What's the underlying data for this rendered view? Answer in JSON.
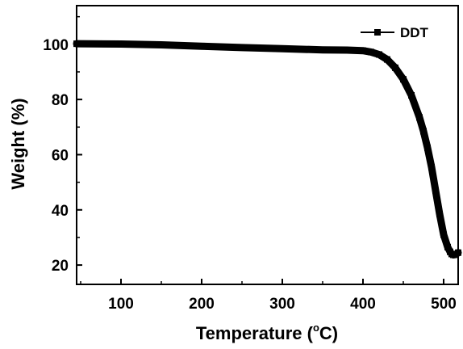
{
  "chart_data": {
    "type": "line",
    "xlabel_main": "Temperature (",
    "xlabel_degree": "o",
    "xlabel_unit": "C)",
    "ylabel": "Weight (%)",
    "xlim": [
      45,
      518
    ],
    "ylim": [
      13,
      114
    ],
    "x_ticks": [
      100,
      200,
      300,
      400,
      500
    ],
    "y_ticks": [
      20,
      40,
      60,
      80,
      100
    ],
    "grid": false,
    "legend_position": "top-right",
    "series": [
      {
        "name": "DDT",
        "color": "#000000",
        "marker": "square",
        "x": [
          45,
          100,
          150,
          200,
          250,
          300,
          350,
          380,
          400,
          410,
          420,
          430,
          440,
          450,
          460,
          470,
          475,
          480,
          485,
          490,
          495,
          500,
          505,
          508,
          510,
          512,
          515,
          518
        ],
        "y": [
          100.2,
          100.1,
          99.8,
          99.3,
          98.8,
          98.4,
          98.0,
          97.9,
          97.7,
          97.2,
          96.3,
          94.5,
          91.5,
          87.3,
          81.5,
          73.5,
          68.5,
          62.5,
          55.5,
          47.0,
          38.5,
          31.0,
          26.5,
          24.8,
          24.0,
          23.7,
          23.8,
          24.5
        ]
      }
    ]
  }
}
